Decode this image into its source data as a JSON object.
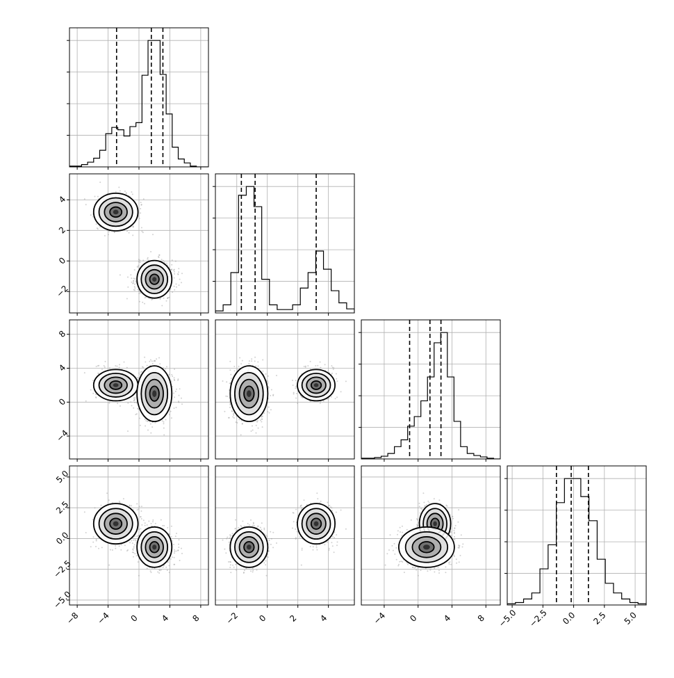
{
  "chart_data": {
    "type": "corner",
    "panels_per_side": 4,
    "grid": true,
    "axes": [
      {
        "ticks": [
          "−8",
          "−4",
          "0",
          "4",
          "8"
        ],
        "tick_values": [
          -8,
          -4,
          0,
          4,
          8
        ],
        "range": [
          -9,
          9
        ]
      },
      {
        "ticks": [
          "−2",
          "0",
          "2",
          "4"
        ],
        "tick_values": [
          -2,
          0,
          2,
          4
        ],
        "range": [
          -3.4,
          5.7
        ]
      },
      {
        "ticks": [
          "−4",
          "0",
          "4",
          "8"
        ],
        "tick_values": [
          -4,
          0,
          4,
          8
        ],
        "range": [
          -6.7,
          9.7
        ]
      },
      {
        "ticks": [
          "−5.0",
          "−2.5",
          "0.0",
          "2.5",
          "5.0"
        ],
        "tick_values": [
          -5,
          -2.5,
          0,
          2.5,
          5
        ],
        "range": [
          -5.4,
          5.9
        ]
      }
    ],
    "quantiles": [
      [
        -2.9,
        1.6,
        3.1
      ],
      [
        -1.7,
        -0.8,
        3.2
      ],
      [
        -1.0,
        1.4,
        2.7
      ],
      [
        -1.4,
        -0.2,
        1.2
      ]
    ],
    "histograms": [
      {
        "counts": [
          1,
          1,
          3,
          6,
          11,
          21,
          42,
          50,
          47,
          39,
          51,
          56,
          116,
          160,
          160,
          117,
          67,
          25,
          10,
          5,
          1,
          0,
          0
        ]
      },
      {
        "counts": [
          3,
          12,
          60,
          175,
          188,
          158,
          50,
          12,
          5,
          5,
          12,
          37,
          60,
          92,
          65,
          33,
          15,
          6
        ]
      },
      {
        "counts": [
          1,
          1,
          2,
          4,
          8,
          18,
          28,
          48,
          62,
          85,
          120,
          170,
          185,
          120,
          55,
          18,
          8,
          5,
          3,
          1,
          0
        ]
      },
      {
        "counts": [
          1,
          2,
          5,
          10,
          30,
          50,
          85,
          105,
          105,
          90,
          70,
          38,
          18,
          10,
          5,
          2,
          1
        ]
      }
    ],
    "components": [
      {
        "means": [
          -3,
          3.2,
          2,
          1.2
        ],
        "sds": [
          1.4,
          0.6,
          0.9,
          0.8
        ],
        "weight": 0.34
      },
      {
        "means": [
          2,
          -1.2,
          1,
          -0.7
        ],
        "sds": [
          1.1,
          0.6,
          1.6,
          0.8
        ],
        "weight": 0.66
      }
    ],
    "contour_levels": [
      0.5,
      1.0,
      1.5,
      2.0
    ]
  }
}
